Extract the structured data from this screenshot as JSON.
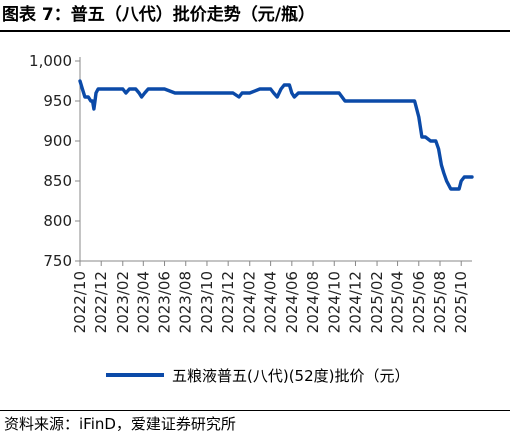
{
  "figure_title": "图表 7：普五（八代）批价走势（元/瓶）",
  "source_note": "资料来源：iFinD，爱建证券研究所",
  "chart_data": {
    "type": "line",
    "title": "",
    "xlabel": "",
    "ylabel": "",
    "ylim": [
      750,
      1000
    ],
    "y_ticks": [
      "750",
      "800",
      "850",
      "900",
      "950",
      "1,000"
    ],
    "x_ticks": [
      "2022/10",
      "2022/12",
      "2023/02",
      "2023/04",
      "2023/06",
      "2023/08",
      "2023/10",
      "2023/12",
      "2024/02",
      "2024/04",
      "2024/06",
      "2024/08",
      "2024/10",
      "2024/12",
      "2025/02",
      "2025/04",
      "2025/06",
      "2025/08",
      "2025/10"
    ],
    "grid": false,
    "legend_position": "bottom",
    "line_color": "#0b4aa8",
    "series": [
      {
        "name": "五粮液普五(八代)(52度)批价（元）",
        "x": [
          "2022-10-01",
          "2022-10-08",
          "2022-10-15",
          "2022-10-25",
          "2022-11-01",
          "2022-11-06",
          "2022-11-10",
          "2022-11-13",
          "2022-11-16",
          "2022-11-22",
          "2022-12-01",
          "2023-01-01",
          "2023-02-01",
          "2023-02-10",
          "2023-02-20",
          "2023-03-10",
          "2023-03-20",
          "2023-03-27",
          "2023-04-05",
          "2023-04-15",
          "2023-05-01",
          "2023-05-20",
          "2023-06-01",
          "2023-07-01",
          "2023-09-01",
          "2023-11-01",
          "2023-12-15",
          "2024-01-01",
          "2024-01-10",
          "2024-02-01",
          "2024-03-01",
          "2024-04-01",
          "2024-04-10",
          "2024-04-20",
          "2024-05-01",
          "2024-05-10",
          "2024-05-25",
          "2024-06-01",
          "2024-06-08",
          "2024-06-20",
          "2024-07-01",
          "2024-08-01",
          "2024-09-01",
          "2024-10-15",
          "2024-11-01",
          "2024-12-01",
          "2025-02-01",
          "2025-04-01",
          "2025-05-20",
          "2025-06-01",
          "2025-06-10",
          "2025-06-20",
          "2025-07-05",
          "2025-07-20",
          "2025-07-28",
          "2025-08-05",
          "2025-08-12",
          "2025-08-20",
          "2025-09-01",
          "2025-09-15",
          "2025-09-25",
          "2025-10-01",
          "2025-10-10",
          "2025-10-20",
          "2025-11-01"
        ],
        "y": [
          975,
          965,
          955,
          955,
          950,
          950,
          940,
          950,
          960,
          965,
          965,
          965,
          965,
          960,
          965,
          965,
          960,
          955,
          960,
          965,
          965,
          965,
          965,
          960,
          960,
          960,
          960,
          955,
          960,
          960,
          965,
          965,
          960,
          955,
          965,
          970,
          970,
          960,
          955,
          960,
          960,
          960,
          960,
          960,
          950,
          950,
          950,
          950,
          950,
          930,
          905,
          905,
          900,
          900,
          890,
          870,
          860,
          850,
          840,
          840,
          840,
          850,
          855,
          855,
          855
        ]
      }
    ]
  }
}
